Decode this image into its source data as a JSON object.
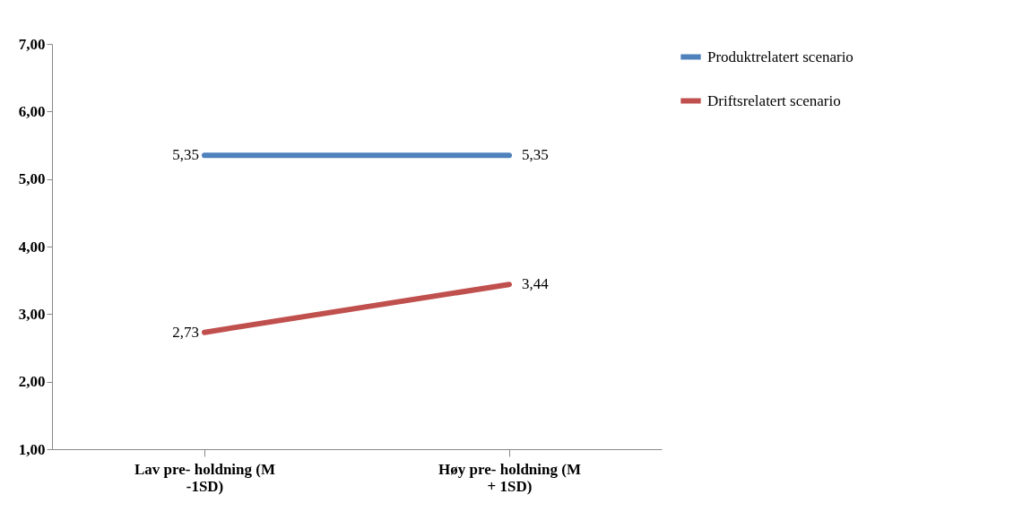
{
  "chart_data": {
    "type": "line",
    "categories": [
      "Lav pre- holdning (M -1SD)",
      "Høy pre- holdning (M + 1SD)"
    ],
    "series": [
      {
        "name": "Produktrelatert scenario",
        "color": "#4f81bd",
        "values": [
          5.35,
          5.35
        ],
        "value_labels": [
          "5,35",
          "5,35"
        ]
      },
      {
        "name": "Driftsrelatert scenario",
        "color": "#c0504d",
        "values": [
          2.73,
          3.44
        ],
        "value_labels": [
          "2,73",
          "3,44"
        ]
      }
    ],
    "ylim": [
      1,
      7
    ],
    "yticks": [
      {
        "value": 1,
        "label": "1,00"
      },
      {
        "value": 2,
        "label": "2,00"
      },
      {
        "value": 3,
        "label": "3,00"
      },
      {
        "value": 4,
        "label": "4,00"
      },
      {
        "value": 5,
        "label": "5,00"
      },
      {
        "value": 6,
        "label": "6,00"
      },
      {
        "value": 7,
        "label": "7,00"
      }
    ],
    "grid": false,
    "legend": "top right",
    "marker": "none",
    "line_style": "solid"
  }
}
